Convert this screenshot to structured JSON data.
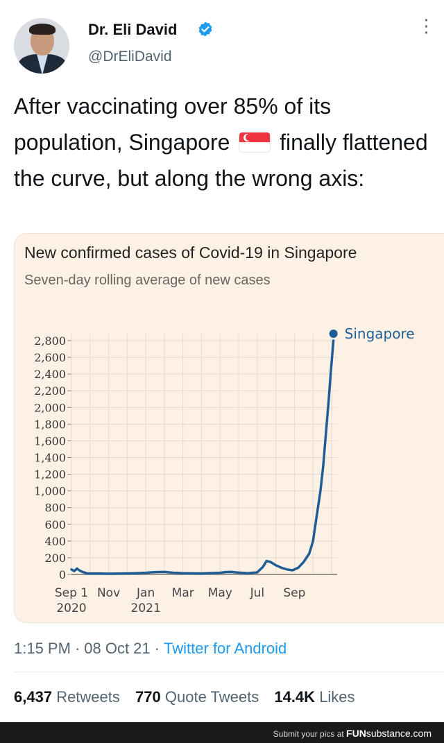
{
  "tweet": {
    "author_name": "Dr. Eli David",
    "author_handle": "@DrEliDavid",
    "text_1": "After vaccinating over 85% of its population, Singapore",
    "text_2": "finally flattened the curve, but along the wrong axis:",
    "flag_icon": "singapore-flag-icon",
    "timestamp_time": "1:15 PM",
    "timestamp_date": "08 Oct 21",
    "source": "Twitter for Android",
    "retweets_count": "6,437",
    "retweets_label": "Retweets",
    "quote_count": "770",
    "quote_label": "Quote Tweets",
    "likes_count": "14.4K",
    "likes_label": "Likes"
  },
  "colors": {
    "line": "#1f5d95",
    "card_bg": "#fdf1e6",
    "link": "#1d9bf0",
    "verified": "#1d9bf0"
  },
  "chart_data": {
    "type": "line",
    "title": "New confirmed cases of Covid-19 in Singapore",
    "subtitle": "Seven-day rolling average of new cases",
    "xlabel": "",
    "ylabel": "",
    "x_tick_labels": [
      "Sep 1",
      "Nov",
      "Jan",
      "Mar",
      "May",
      "Jul",
      "Sep"
    ],
    "x_tick_sublabels": [
      "2020",
      "",
      "2021",
      "",
      "",
      "",
      ""
    ],
    "x_tick_months": [
      0,
      2,
      4,
      6,
      8,
      10,
      12
    ],
    "y_ticks": [
      0,
      200,
      400,
      600,
      800,
      1000,
      1200,
      1400,
      1600,
      1800,
      2000,
      2200,
      2400,
      2600,
      2800
    ],
    "y_tick_labels": [
      "0",
      "200",
      "400",
      "600",
      "800",
      "1,000",
      "1,200",
      "1,400",
      "1,600",
      "1,800",
      "2,000",
      "2,200",
      "2,400",
      "2,600",
      "2,800"
    ],
    "ylim": [
      0,
      2800
    ],
    "xlim_months": [
      0,
      14.3
    ],
    "grid": true,
    "series": [
      {
        "name": "Singapore",
        "x_months": [
          0,
          0.15,
          0.3,
          0.45,
          0.6,
          0.8,
          1.0,
          1.5,
          2.0,
          2.5,
          3.0,
          3.5,
          4.0,
          4.3,
          4.6,
          5.0,
          5.5,
          6.0,
          7.0,
          8.0,
          8.3,
          8.6,
          9.0,
          9.5,
          10.0,
          10.3,
          10.5,
          10.7,
          11.0,
          11.3,
          11.6,
          11.9,
          12.2,
          12.5,
          12.8,
          13.0,
          13.2,
          13.4,
          13.55,
          13.7,
          13.85,
          13.95,
          14.1
        ],
        "values": [
          60,
          40,
          70,
          45,
          30,
          15,
          10,
          12,
          8,
          10,
          12,
          15,
          20,
          25,
          28,
          30,
          20,
          15,
          12,
          20,
          28,
          30,
          22,
          15,
          25,
          90,
          160,
          150,
          110,
          80,
          60,
          50,
          80,
          150,
          250,
          400,
          700,
          1000,
          1300,
          1700,
          2100,
          2400,
          2800
        ]
      }
    ],
    "legend_position": "end-of-line"
  },
  "footer": {
    "submit_text": "Submit your pics at",
    "brand_a": "FUN",
    "brand_b": "substance",
    "brand_c": ".com"
  }
}
